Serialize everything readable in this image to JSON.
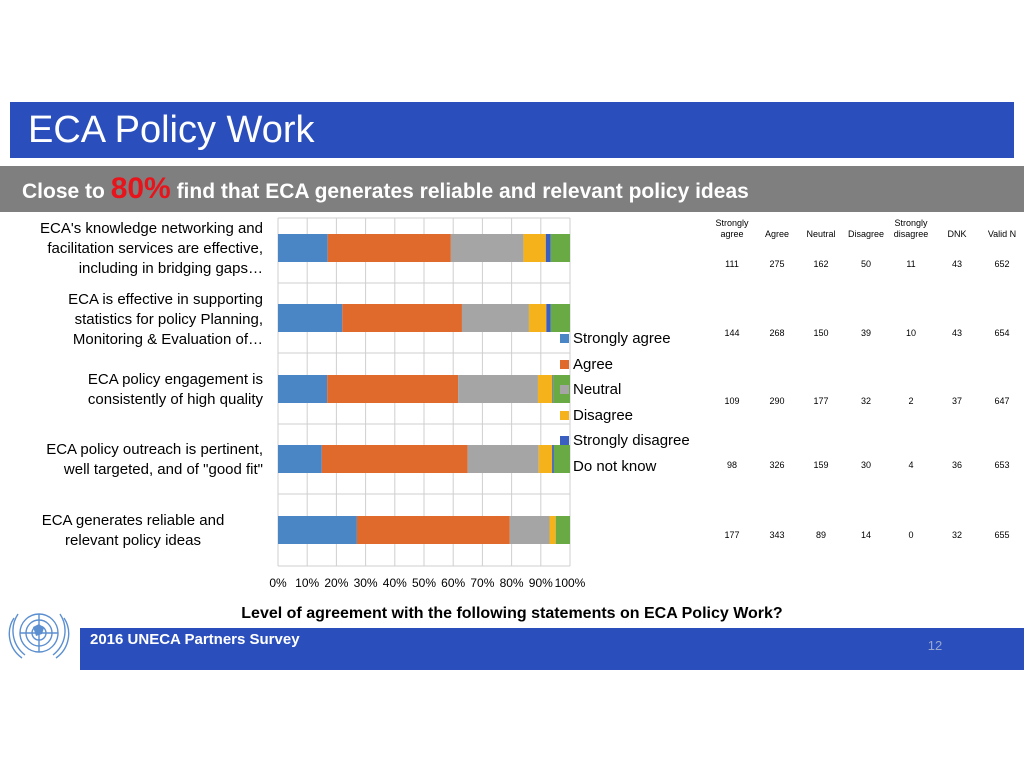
{
  "slide": {
    "title": "ECA Policy Work",
    "subtitle_before": "Close to ",
    "subtitle_highlight": "80%",
    "subtitle_after": " find that ECA generates reliable and relevant policy ideas",
    "question": "Level of agreement with the following statements on ECA Policy Work?",
    "footer": "2016 UNECA Partners Survey",
    "page_number": "12"
  },
  "chart_data": {
    "type": "bar",
    "orientation": "horizontal",
    "stacked": "100%",
    "title": "",
    "xlim": [
      0,
      100
    ],
    "x_ticks": [
      "0%",
      "10%",
      "20%",
      "30%",
      "40%",
      "50%",
      "60%",
      "70%",
      "80%",
      "90%",
      "100%"
    ],
    "grid": true,
    "legend_position": "right",
    "categories": [
      "ECA's knowledge networking and facilitation services are effective, including in bridging gaps…",
      "ECA is effective in supporting statistics for policy Planning, Monitoring & Evaluation of…",
      "ECA policy engagement is consistently of high quality",
      "ECA policy outreach is pertinent, well targeted, and of \"good fit\"",
      "ECA generates reliable and relevant policy ideas"
    ],
    "category_lines": [
      [
        "ECA's knowledge networking and",
        "facilitation services are effective,",
        "including in bridging gaps…"
      ],
      [
        "ECA is effective in supporting",
        "statistics for policy Planning,",
        "Monitoring & Evaluation of…"
      ],
      [
        "ECA policy engagement is",
        "consistently of high quality"
      ],
      [
        "ECA policy outreach is pertinent,",
        "well targeted, and of \"good fit\""
      ],
      [
        "ECA generates reliable and",
        "relevant policy ideas"
      ]
    ],
    "series": [
      {
        "name": "Strongly agree",
        "color": "#4a86c6",
        "values": [
          111,
          144,
          109,
          98,
          177
        ]
      },
      {
        "name": "Agree",
        "color": "#e06a2c",
        "values": [
          275,
          268,
          290,
          326,
          343
        ]
      },
      {
        "name": "Neutral",
        "color": "#a5a5a5",
        "values": [
          162,
          150,
          177,
          159,
          89
        ]
      },
      {
        "name": "Disagree",
        "color": "#f5b21b",
        "values": [
          50,
          39,
          32,
          30,
          14
        ]
      },
      {
        "name": "Strongly disagree",
        "color": "#3b5fc0",
        "values": [
          11,
          10,
          2,
          4,
          0
        ]
      },
      {
        "name": "Do not know",
        "color": "#6aaa45",
        "values": [
          43,
          43,
          37,
          36,
          32
        ]
      }
    ],
    "table": {
      "headers": [
        [
          "Strongly",
          "agree"
        ],
        [
          "",
          "Agree"
        ],
        [
          "",
          "Neutral"
        ],
        [
          "",
          "Disagree"
        ],
        [
          "Strongly",
          "disagree"
        ],
        [
          "",
          "DNK"
        ],
        [
          "",
          "Valid N"
        ]
      ],
      "rows": [
        [
          "111",
          "275",
          "162",
          "50",
          "11",
          "43",
          "652"
        ],
        [
          "144",
          "268",
          "150",
          "39",
          "10",
          "43",
          "654"
        ],
        [
          "109",
          "290",
          "177",
          "32",
          "2",
          "37",
          "647"
        ],
        [
          "98",
          "326",
          "159",
          "30",
          "4",
          "36",
          "653"
        ],
        [
          "177",
          "343",
          "89",
          "14",
          "0",
          "32",
          "655"
        ]
      ]
    }
  }
}
